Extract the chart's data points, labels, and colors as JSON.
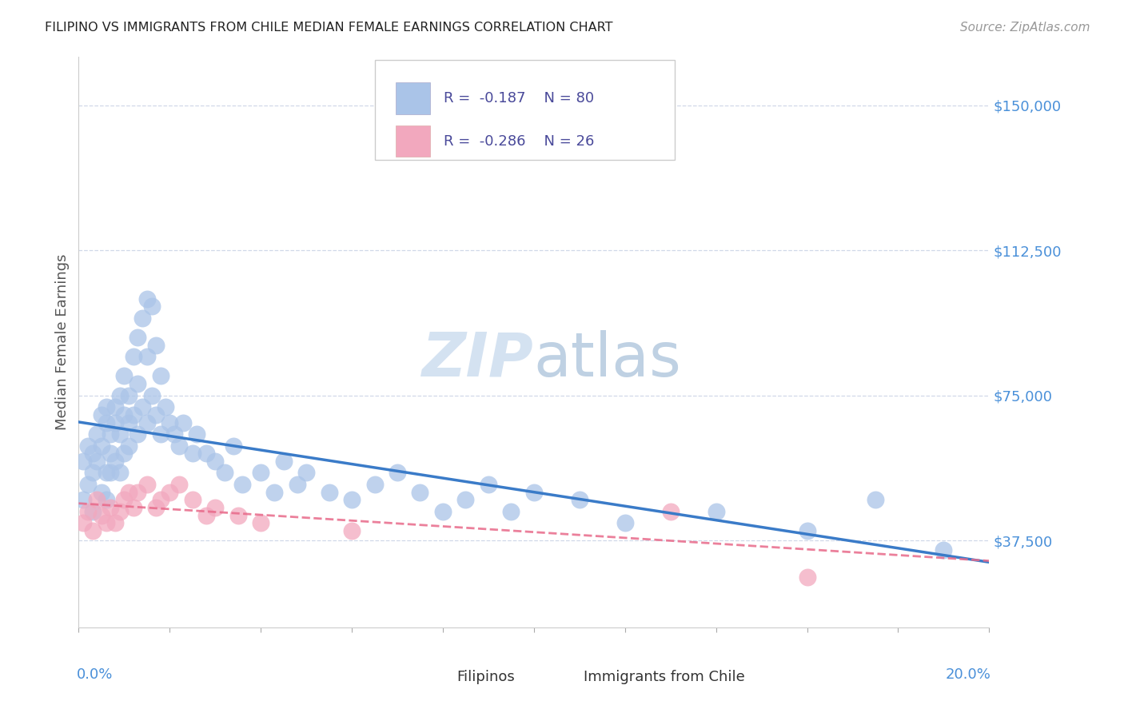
{
  "title": "FILIPINO VS IMMIGRANTS FROM CHILE MEDIAN FEMALE EARNINGS CORRELATION CHART",
  "source": "Source: ZipAtlas.com",
  "ylabel": "Median Female Earnings",
  "ytick_labels": [
    "$37,500",
    "$75,000",
    "$112,500",
    "$150,000"
  ],
  "ytick_values": [
    37500,
    75000,
    112500,
    150000
  ],
  "ylim": [
    15000,
    162500
  ],
  "xlim": [
    0.0,
    0.2
  ],
  "filipino_color": "#aac4e8",
  "chile_color": "#f2a8be",
  "filipino_line_color": "#3a7bc8",
  "chile_line_color": "#e86a8a",
  "background_color": "#ffffff",
  "grid_color": "#d0d8e8",
  "axis_color": "#4a90d9",
  "watermark_color": "#d0dff0",
  "title_color": "#222222",
  "source_color": "#999999",
  "ylabel_color": "#555555",
  "legend_text_color": "#4a4a9a",
  "legend_R_color": "#e05080",
  "bottom_legend_color": "#333333",
  "filipino_points_x": [
    0.001,
    0.001,
    0.002,
    0.002,
    0.003,
    0.003,
    0.003,
    0.004,
    0.004,
    0.005,
    0.005,
    0.005,
    0.006,
    0.006,
    0.006,
    0.006,
    0.007,
    0.007,
    0.007,
    0.008,
    0.008,
    0.008,
    0.009,
    0.009,
    0.009,
    0.01,
    0.01,
    0.01,
    0.011,
    0.011,
    0.011,
    0.012,
    0.012,
    0.013,
    0.013,
    0.013,
    0.014,
    0.014,
    0.015,
    0.015,
    0.015,
    0.016,
    0.016,
    0.017,
    0.017,
    0.018,
    0.018,
    0.019,
    0.02,
    0.021,
    0.022,
    0.023,
    0.025,
    0.026,
    0.028,
    0.03,
    0.032,
    0.034,
    0.036,
    0.04,
    0.043,
    0.045,
    0.048,
    0.05,
    0.055,
    0.06,
    0.065,
    0.07,
    0.075,
    0.08,
    0.085,
    0.09,
    0.095,
    0.1,
    0.11,
    0.12,
    0.14,
    0.16,
    0.175,
    0.19
  ],
  "filipino_points_y": [
    58000,
    48000,
    62000,
    52000,
    55000,
    60000,
    45000,
    58000,
    65000,
    62000,
    50000,
    70000,
    68000,
    55000,
    72000,
    48000,
    60000,
    65000,
    55000,
    68000,
    72000,
    58000,
    75000,
    65000,
    55000,
    70000,
    60000,
    80000,
    68000,
    75000,
    62000,
    85000,
    70000,
    90000,
    78000,
    65000,
    95000,
    72000,
    100000,
    85000,
    68000,
    98000,
    75000,
    88000,
    70000,
    80000,
    65000,
    72000,
    68000,
    65000,
    62000,
    68000,
    60000,
    65000,
    60000,
    58000,
    55000,
    62000,
    52000,
    55000,
    50000,
    58000,
    52000,
    55000,
    50000,
    48000,
    52000,
    55000,
    50000,
    45000,
    48000,
    52000,
    45000,
    50000,
    48000,
    42000,
    45000,
    40000,
    48000,
    35000
  ],
  "chile_points_x": [
    0.001,
    0.002,
    0.003,
    0.004,
    0.005,
    0.006,
    0.007,
    0.008,
    0.009,
    0.01,
    0.011,
    0.012,
    0.013,
    0.015,
    0.017,
    0.018,
    0.02,
    0.022,
    0.025,
    0.028,
    0.03,
    0.035,
    0.04,
    0.06,
    0.13,
    0.16
  ],
  "chile_points_y": [
    42000,
    45000,
    40000,
    48000,
    44000,
    42000,
    46000,
    42000,
    45000,
    48000,
    50000,
    46000,
    50000,
    52000,
    46000,
    48000,
    50000,
    52000,
    48000,
    44000,
    46000,
    44000,
    42000,
    40000,
    45000,
    28000
  ]
}
